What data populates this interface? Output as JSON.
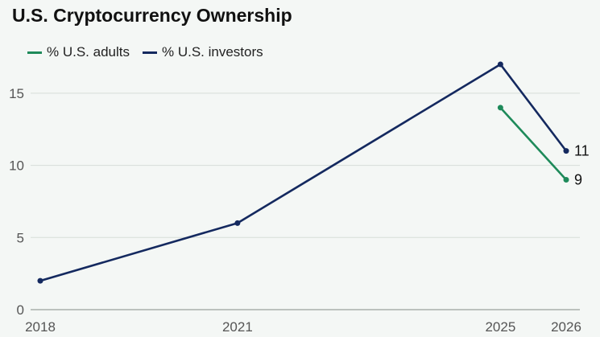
{
  "chart_data": {
    "type": "line",
    "title": "U.S. Cryptocurrency Ownership",
    "x": [
      2018,
      2021,
      2025,
      2026
    ],
    "ylim": [
      0,
      17
    ],
    "yticks": [
      0,
      5,
      10,
      15
    ],
    "grid": true,
    "legend_position": "top-left",
    "series": [
      {
        "name": "% U.S. adults",
        "color": "#1e8a5a",
        "x": [
          2025,
          2026
        ],
        "values": [
          14,
          9
        ],
        "end_label": "9"
      },
      {
        "name": "% U.S. investors",
        "color": "#14295f",
        "x": [
          2018,
          2021,
          2025,
          2026
        ],
        "values": [
          2,
          6,
          17,
          11
        ],
        "end_label": "11"
      }
    ]
  }
}
